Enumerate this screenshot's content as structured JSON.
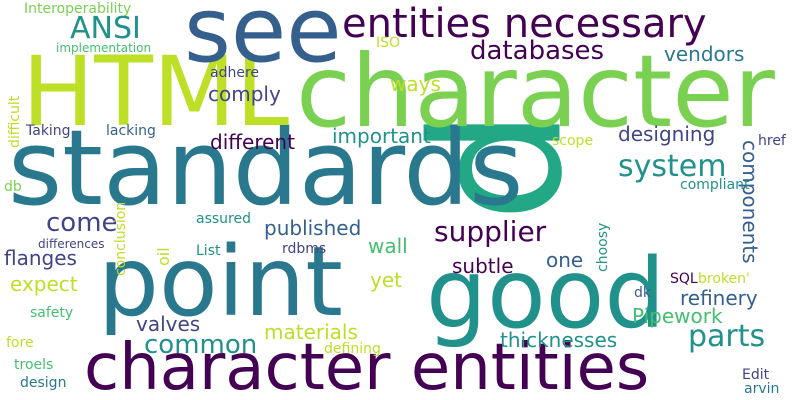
{
  "words": [
    "p",
    "standards",
    "character",
    "HTML",
    "good",
    "see",
    "point",
    "character entities",
    "entities necessary",
    "databases",
    "ANSI",
    "Interoperability",
    "system",
    "supplier",
    "parts",
    "come",
    "common",
    "different",
    "important",
    "designing",
    "components",
    "published",
    "wall",
    "flanges",
    "expect",
    "yet",
    "subtle",
    "one",
    "refinery",
    "Pipework",
    "materials",
    "thicknesses",
    "valves",
    "comply",
    "ways",
    "adhere",
    "vendors",
    "implementation",
    "ISO",
    "difficult",
    "Taking",
    "lacking",
    "scope",
    "href",
    "conclusion",
    "compliant",
    "assured",
    "oil",
    "differences",
    "List",
    "rdbms",
    "choosy",
    "SQL",
    "broken'",
    "dk",
    "safety",
    "fore",
    "defining",
    "troels",
    "design",
    "Edit",
    "arvin",
    "db"
  ]
}
